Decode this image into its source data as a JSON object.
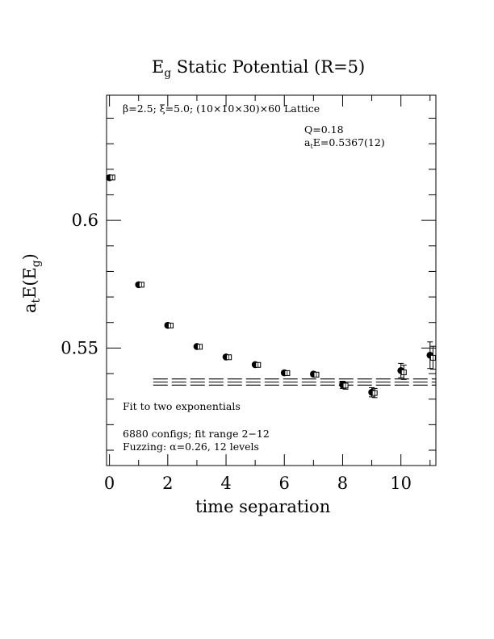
{
  "chart_data": {
    "type": "scatter",
    "title_main": "E",
    "title_sub": "g",
    "title_rest": " Static Potential (R=5)",
    "xlabel": "time separation",
    "ylabel_a": "a",
    "ylabel_t": "t",
    "ylabel_mid": "E(E",
    "ylabel_g": "g",
    "ylabel_end": ")",
    "xlim": [
      -0.1,
      11.2
    ],
    "ylim": [
      0.504,
      0.649
    ],
    "xticks": [
      0,
      2,
      4,
      6,
      8,
      10
    ],
    "xtick_labels": [
      "0",
      "2",
      "4",
      "6",
      "8",
      "10"
    ],
    "yticks": [
      0.55,
      0.6
    ],
    "ytick_labels": [
      "0.55",
      "0.6"
    ],
    "y_minor_step": 0.01,
    "lattice_info": "β=2.5; ξ=5.0; (10×10×30)×60 Lattice",
    "q_value": "Q=0.18",
    "energy_a": "a",
    "energy_t": "t",
    "energy_rest": "E=0.5367(12)",
    "fit_text": "Fit to two exponentials",
    "configs_text": "6880 configs; fit range 2−12",
    "fuzzing_text": "Fuzzing: α=0.26, 12 levels",
    "series": [
      {
        "marker": "filled-circle",
        "x": [
          0,
          1,
          2,
          3,
          4,
          5,
          6,
          7,
          8,
          9,
          10,
          11
        ],
        "y": [
          0.6167,
          0.5748,
          0.5589,
          0.5506,
          0.5465,
          0.5435,
          0.5403,
          0.5398,
          0.5356,
          0.5327,
          0.5412,
          0.5472
        ],
        "err": [
          0.0004,
          0.0006,
          0.0006,
          0.0006,
          0.0006,
          0.0006,
          0.0007,
          0.0008,
          0.0014,
          0.0018,
          0.0028,
          0.0052
        ]
      },
      {
        "marker": "open-square",
        "x": [
          0.1,
          1.1,
          2.1,
          3.1,
          4.1,
          5.1,
          6.1,
          7.1,
          8.1,
          9.1,
          10.1,
          11.1
        ],
        "y": [
          0.6168,
          0.5748,
          0.5588,
          0.5505,
          0.5464,
          0.5434,
          0.5402,
          0.5396,
          0.5353,
          0.5324,
          0.5405,
          0.5462
        ],
        "err": [
          0.0004,
          0.0006,
          0.0006,
          0.0006,
          0.0006,
          0.0006,
          0.0007,
          0.0008,
          0.0014,
          0.0018,
          0.0028,
          0.0045
        ]
      }
    ],
    "fit": {
      "x_range": [
        1.5,
        11.2
      ],
      "center": 0.5367,
      "error": 0.0012
    }
  }
}
